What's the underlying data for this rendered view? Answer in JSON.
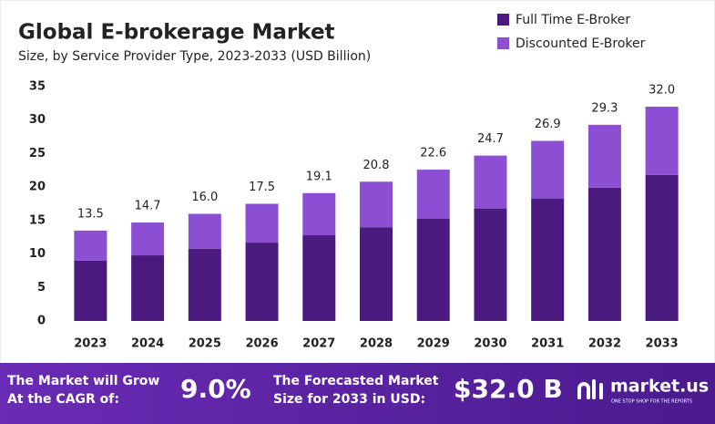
{
  "chart_data": {
    "type": "stacked_bar",
    "title": "Global E-brokerage Market",
    "subtitle": "Size, by Service Provider Type, 2023-2033 (USD Billion)",
    "categories": [
      "2023",
      "2024",
      "2025",
      "2026",
      "2027",
      "2028",
      "2029",
      "2030",
      "2031",
      "2032",
      "2033"
    ],
    "series": [
      {
        "name": "Full Time E-Broker",
        "color": "#4a1a7e",
        "values": [
          9.0,
          9.8,
          10.8,
          11.7,
          12.8,
          14.0,
          15.3,
          16.8,
          18.3,
          19.9,
          21.8
        ]
      },
      {
        "name": "Discounted E-Broker",
        "color": "#8c4fd3",
        "values": [
          4.5,
          4.9,
          5.2,
          5.8,
          6.3,
          6.8,
          7.3,
          7.9,
          8.6,
          9.4,
          10.2
        ]
      }
    ],
    "totals": [
      13.5,
      14.7,
      16.0,
      17.5,
      19.1,
      20.8,
      22.6,
      24.7,
      26.9,
      29.3,
      32.0
    ],
    "total_labels": [
      "13.5",
      "14.7",
      "16.0",
      "17.5",
      "19.1",
      "20.8",
      "22.6",
      "24.7",
      "26.9",
      "29.3",
      "32.0"
    ],
    "ylim": [
      0,
      35
    ],
    "yticks": [
      0,
      5,
      10,
      15,
      20,
      25,
      30,
      35
    ],
    "grid": false,
    "legend": "top-right"
  },
  "footer": {
    "cagr_text_1": "The Market will Grow",
    "cagr_text_2": "At the CAGR of:",
    "cagr_value": "9.0%",
    "forecast_text_1": "The Forecasted Market",
    "forecast_text_2": "Size for 2033 in USD:",
    "forecast_value": "$32.0 B",
    "brand": "market.us",
    "tagline": "ONE STOP SHOP FOR THE REPORTS"
  }
}
